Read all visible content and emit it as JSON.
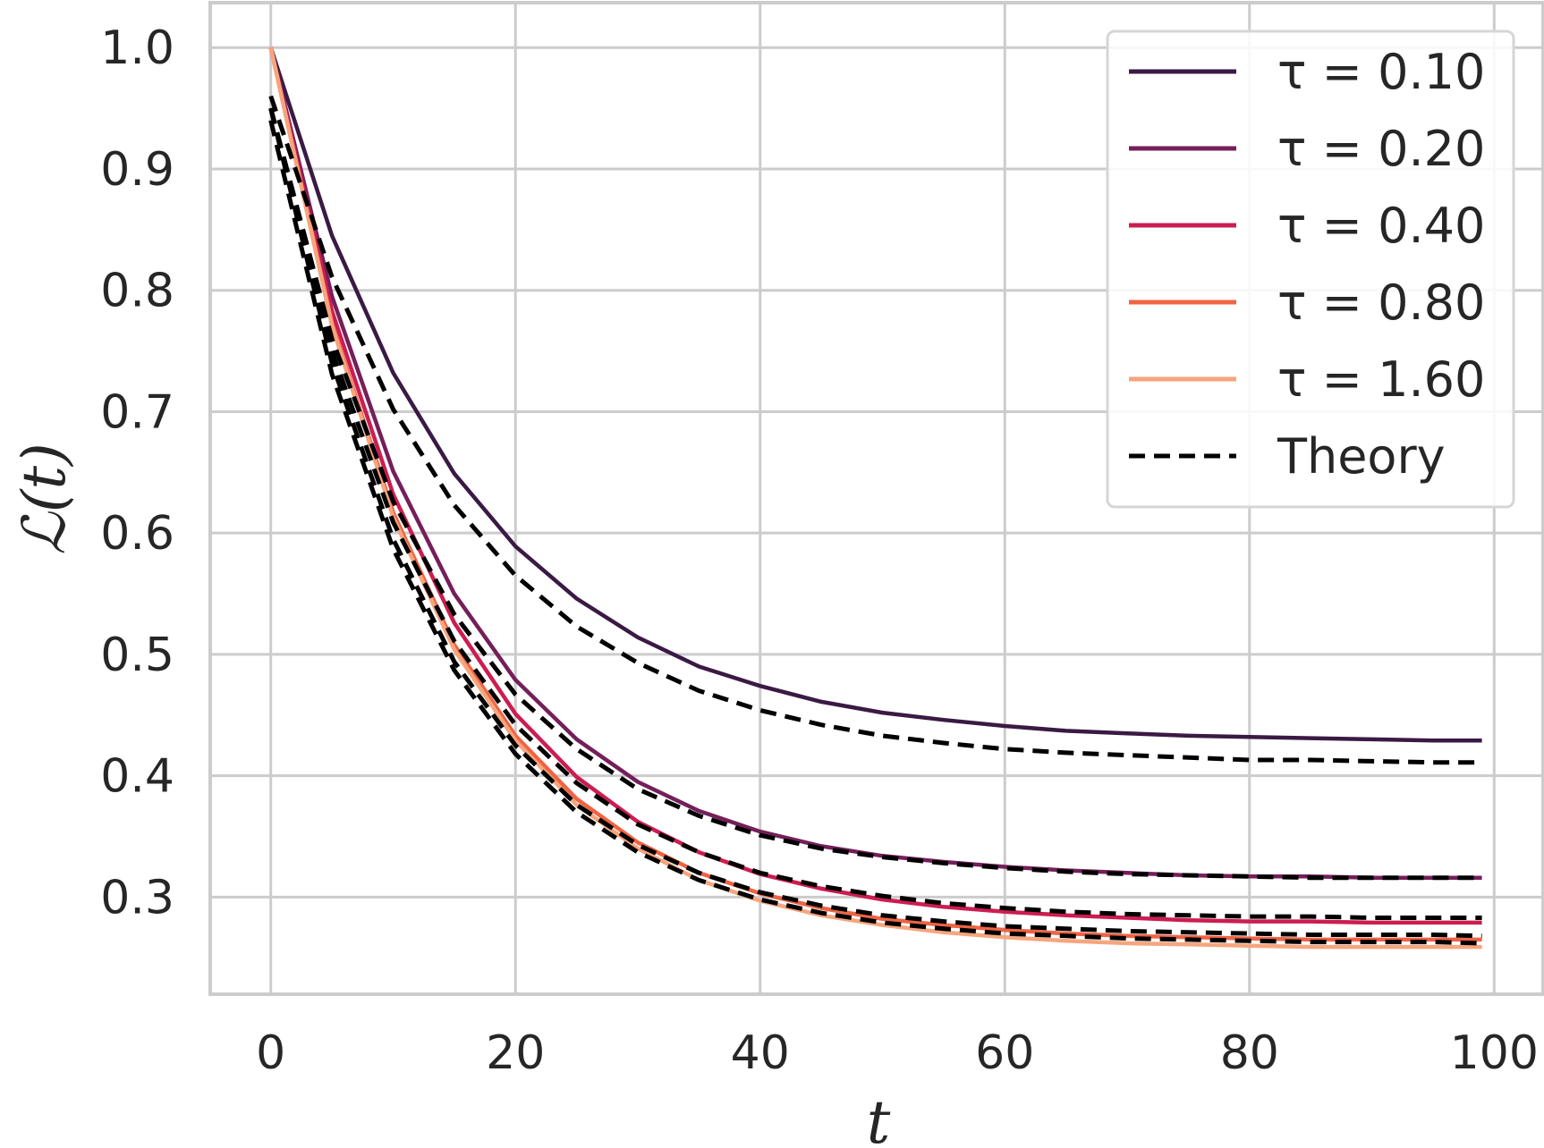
{
  "chart_data": {
    "type": "line",
    "title": "",
    "xlabel": "t",
    "ylabel": "ℒ(t)",
    "xlim": [
      -4.95,
      104.0
    ],
    "ylim": [
      0.22,
      1.037
    ],
    "xticks": [
      0,
      20,
      40,
      60,
      80,
      100
    ],
    "xtick_labels": [
      "0",
      "20",
      "40",
      "60",
      "80",
      "100"
    ],
    "yticks": [
      0.3,
      0.4,
      0.5,
      0.6,
      0.7,
      0.8,
      0.9,
      1.0
    ],
    "ytick_labels": [
      "0.3",
      "0.4",
      "0.5",
      "0.6",
      "0.7",
      "0.8",
      "0.9",
      "1.0"
    ],
    "grid": true,
    "legend_position": "top-right",
    "x": [
      0,
      5,
      10,
      15,
      20,
      25,
      30,
      35,
      40,
      45,
      50,
      55,
      60,
      65,
      70,
      75,
      80,
      85,
      90,
      95,
      99
    ],
    "series": [
      {
        "name": "τ = 0.10",
        "color": "#3a1a44",
        "style": "solid",
        "values": [
          1.0,
          0.845,
          0.732,
          0.649,
          0.589,
          0.546,
          0.514,
          0.49,
          0.474,
          0.461,
          0.452,
          0.446,
          0.441,
          0.437,
          0.435,
          0.433,
          0.432,
          0.431,
          0.43,
          0.429,
          0.429
        ]
      },
      {
        "name": "τ = 0.20",
        "color": "#741f5a",
        "style": "solid",
        "values": [
          1.0,
          0.795,
          0.651,
          0.55,
          0.479,
          0.43,
          0.395,
          0.371,
          0.354,
          0.342,
          0.334,
          0.329,
          0.325,
          0.322,
          0.32,
          0.318,
          0.317,
          0.317,
          0.316,
          0.316,
          0.316
        ]
      },
      {
        "name": "τ = 0.40",
        "color": "#cc1d51",
        "style": "solid",
        "values": [
          1.0,
          0.783,
          0.632,
          0.526,
          0.451,
          0.399,
          0.362,
          0.337,
          0.319,
          0.307,
          0.298,
          0.292,
          0.288,
          0.285,
          0.283,
          0.281,
          0.28,
          0.28,
          0.279,
          0.279,
          0.279
        ]
      },
      {
        "name": "τ = 0.80",
        "color": "#f06343",
        "style": "solid",
        "values": [
          1.0,
          0.773,
          0.617,
          0.508,
          0.433,
          0.381,
          0.345,
          0.32,
          0.303,
          0.291,
          0.282,
          0.277,
          0.273,
          0.27,
          0.268,
          0.267,
          0.266,
          0.265,
          0.265,
          0.265,
          0.265
        ]
      },
      {
        "name": "τ = 1.60",
        "color": "#f6a57d",
        "style": "solid",
        "values": [
          1.0,
          0.771,
          0.613,
          0.504,
          0.429,
          0.376,
          0.34,
          0.314,
          0.297,
          0.285,
          0.277,
          0.271,
          0.267,
          0.264,
          0.262,
          0.261,
          0.26,
          0.259,
          0.259,
          0.259,
          0.259
        ]
      },
      {
        "name": "Theory",
        "color": "#000000",
        "style": "dashed",
        "for": "τ = 0.10",
        "values": [
          0.96,
          0.811,
          0.702,
          0.623,
          0.565,
          0.523,
          0.493,
          0.47,
          0.454,
          0.442,
          0.433,
          0.427,
          0.422,
          0.419,
          0.417,
          0.415,
          0.413,
          0.413,
          0.412,
          0.411,
          0.411
        ]
      },
      {
        "name": "Theory",
        "color": "#000000",
        "style": "dashed",
        "for": "τ = 0.20",
        "values": [
          0.95,
          0.76,
          0.626,
          0.533,
          0.467,
          0.422,
          0.389,
          0.367,
          0.351,
          0.34,
          0.333,
          0.328,
          0.324,
          0.321,
          0.319,
          0.318,
          0.317,
          0.316,
          0.316,
          0.316,
          0.316
        ]
      },
      {
        "name": "Theory",
        "color": "#000000",
        "style": "dashed",
        "for": "τ = 0.40",
        "values": [
          0.95,
          0.75,
          0.609,
          0.511,
          0.442,
          0.394,
          0.36,
          0.337,
          0.32,
          0.309,
          0.301,
          0.295,
          0.291,
          0.288,
          0.286,
          0.285,
          0.284,
          0.284,
          0.283,
          0.283,
          0.283
        ]
      },
      {
        "name": "Theory",
        "color": "#000000",
        "style": "dashed",
        "for": "τ = 0.80",
        "values": [
          0.95,
          0.74,
          0.595,
          0.494,
          0.425,
          0.376,
          0.343,
          0.32,
          0.304,
          0.293,
          0.285,
          0.28,
          0.276,
          0.274,
          0.272,
          0.271,
          0.27,
          0.269,
          0.269,
          0.269,
          0.268
        ]
      },
      {
        "name": "Theory",
        "color": "#000000",
        "style": "dashed",
        "for": "τ = 1.60",
        "values": [
          0.94,
          0.731,
          0.587,
          0.487,
          0.418,
          0.37,
          0.337,
          0.314,
          0.298,
          0.287,
          0.279,
          0.274,
          0.27,
          0.268,
          0.266,
          0.265,
          0.264,
          0.263,
          0.263,
          0.263,
          0.262
        ]
      }
    ],
    "legend": [
      {
        "label": "τ = 0.10",
        "color": "#3a1a44",
        "style": "solid"
      },
      {
        "label": "τ = 0.20",
        "color": "#741f5a",
        "style": "solid"
      },
      {
        "label": "τ = 0.40",
        "color": "#cc1d51",
        "style": "solid"
      },
      {
        "label": "τ = 0.80",
        "color": "#f06343",
        "style": "solid"
      },
      {
        "label": "τ = 1.60",
        "color": "#f6a57d",
        "style": "solid"
      },
      {
        "label": "Theory",
        "color": "#000000",
        "style": "dashed"
      }
    ]
  }
}
